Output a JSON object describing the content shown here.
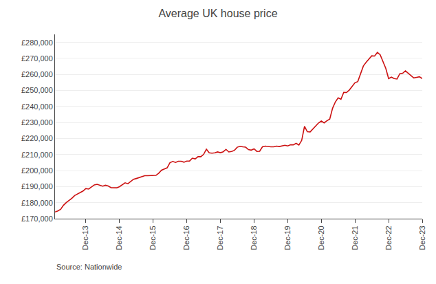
{
  "chart_data": {
    "type": "line",
    "title": "Average UK house price",
    "annotations": [
      "Source: Nationwide"
    ],
    "color": "#cc1111",
    "grid": true,
    "categories": [
      null,
      null,
      null,
      null,
      null,
      null,
      null,
      null,
      null,
      null,
      null,
      "Dec-13",
      null,
      null,
      null,
      null,
      null,
      null,
      null,
      null,
      null,
      null,
      null,
      "Dec-14",
      null,
      null,
      null,
      null,
      null,
      null,
      null,
      null,
      null,
      null,
      null,
      "Dec-15",
      null,
      null,
      null,
      null,
      null,
      null,
      null,
      null,
      null,
      null,
      null,
      "Dec-16",
      null,
      null,
      null,
      null,
      null,
      null,
      null,
      null,
      null,
      null,
      null,
      "Dec-17",
      null,
      null,
      null,
      null,
      null,
      null,
      null,
      null,
      null,
      null,
      null,
      "Dec-18",
      null,
      null,
      null,
      null,
      null,
      null,
      null,
      null,
      null,
      null,
      null,
      "Dec-19",
      null,
      null,
      null,
      null,
      null,
      null,
      null,
      null,
      null,
      null,
      null,
      "Dec-20",
      null,
      null,
      null,
      null,
      null,
      null,
      null,
      null,
      null,
      null,
      null,
      "Dec-21",
      null,
      null,
      null,
      null,
      null,
      null,
      null,
      null,
      null,
      null,
      null,
      "Dec-22",
      null,
      null,
      null,
      null,
      null,
      null,
      null,
      null,
      null,
      null,
      null,
      "Dec-23"
    ],
    "values": [
      174181,
      174800,
      175826,
      178319,
      180051,
      181376,
      182740,
      184440,
      185463,
      186220,
      187236,
      188800,
      188476,
      189760,
      191050,
      191462,
      190781,
      190275,
      190850,
      190371,
      189306,
      189169,
      189243,
      189954,
      191067,
      192372,
      191812,
      193048,
      194583,
      195055,
      195621,
      196261,
      196807,
      196807,
      196891,
      196999,
      197000,
      198390,
      200251,
      201022,
      201745,
      204968,
      205715,
      205116,
      205859,
      205837,
      205240,
      205937,
      205990,
      207741,
      207308,
      208711,
      208685,
      210116,
      213373,
      211085,
      210845,
      211085,
      211671,
      211166,
      211756,
      213254,
      211625,
      211966,
      212634,
      214578,
      215138,
      214820,
      214619,
      213127,
      212773,
      213542,
      211966,
      212080,
      214820,
      215270,
      215000,
      214820,
      214820,
      215270,
      215000,
      215270,
      215820,
      215370,
      216092,
      216092,
      217000,
      216000,
      218902,
      227616,
      224244,
      224123,
      226129,
      227820,
      229721,
      230920,
      229748,
      231068,
      232134,
      238831,
      242832,
      245432,
      244521,
      248857,
      248742,
      250311,
      252687,
      254822,
      255556,
      260230,
      265312,
      267620,
      269421,
      271613,
      271489,
      273751,
      272259,
      268282,
      263788,
      257406,
      258297,
      257406,
      257122,
      260441,
      260736,
      262239,
      260828,
      259153,
      257808,
      258205,
      258557,
      257443
    ],
    "ylim": [
      170000,
      285000
    ],
    "yticks": [
      {
        "value": 170000,
        "label": "£170,000"
      },
      {
        "value": 180000,
        "label": "£180,000"
      },
      {
        "value": 190000,
        "label": "£190,000"
      },
      {
        "value": 200000,
        "label": "£200,000"
      },
      {
        "value": 210000,
        "label": "£210,000"
      },
      {
        "value": 220000,
        "label": "£220,000"
      },
      {
        "value": 230000,
        "label": "£230,000"
      },
      {
        "value": 240000,
        "label": "£240,000"
      },
      {
        "value": 250000,
        "label": "£250,000"
      },
      {
        "value": 260000,
        "label": "£260,000"
      },
      {
        "value": 270000,
        "label": "£270,000"
      },
      {
        "value": 280000,
        "label": "£280,000"
      }
    ]
  }
}
